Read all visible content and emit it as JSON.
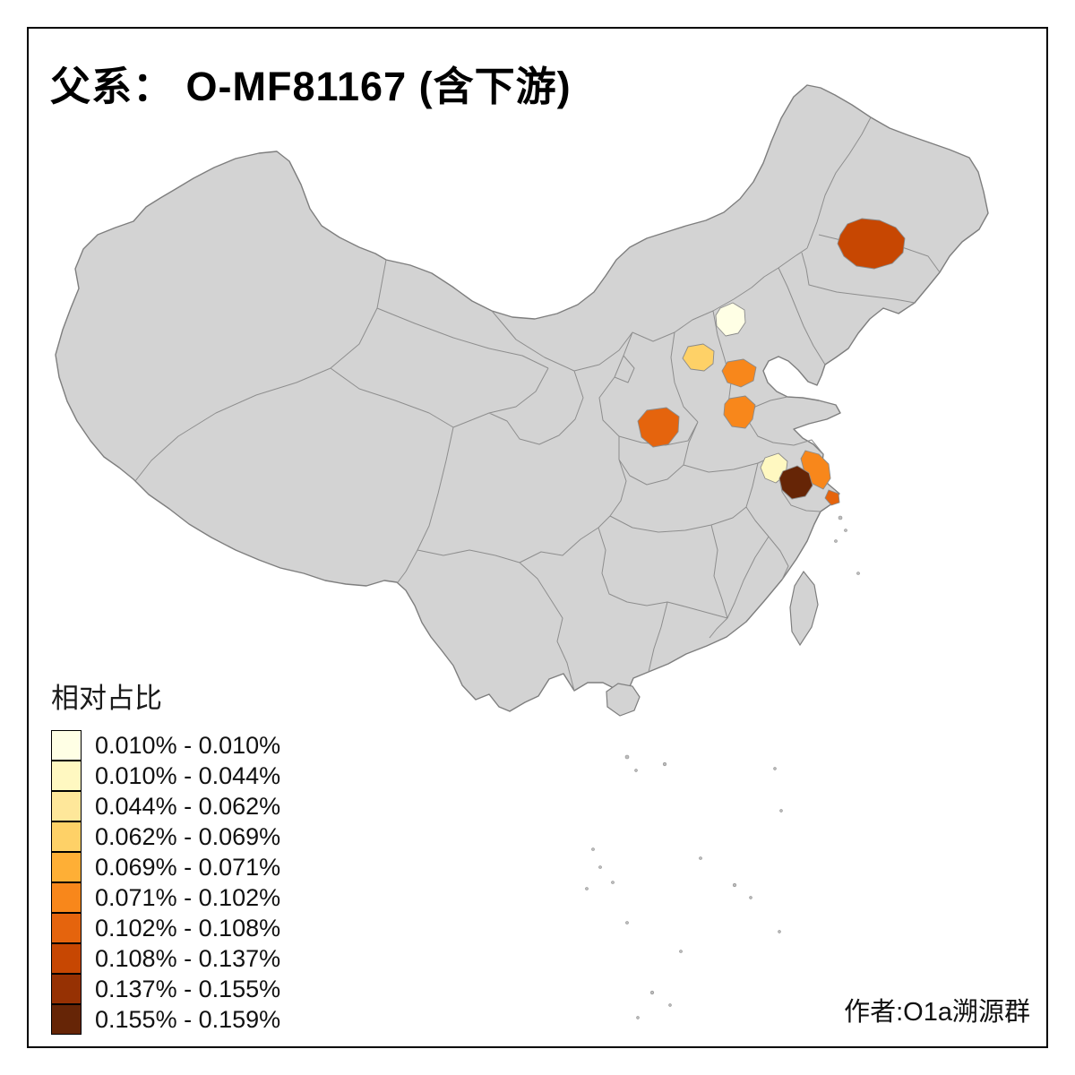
{
  "title": "父系： O-MF81167 (含下游)",
  "attribution": "作者:O1a溯源群",
  "legend": {
    "title": "相对占比",
    "items": [
      {
        "label": "0.010% - 0.010%",
        "color": "#FFFFE5"
      },
      {
        "label": "0.010% - 0.044%",
        "color": "#FFF8C1"
      },
      {
        "label": "0.044% - 0.062%",
        "color": "#FEE79A"
      },
      {
        "label": "0.062% - 0.069%",
        "color": "#FED167"
      },
      {
        "label": "0.069% - 0.071%",
        "color": "#FEAF36"
      },
      {
        "label": "0.071% - 0.102%",
        "color": "#F8871B"
      },
      {
        "label": "0.102% - 0.108%",
        "color": "#E5640D"
      },
      {
        "label": "0.108% - 0.137%",
        "color": "#C74702"
      },
      {
        "label": "0.137% - 0.155%",
        "color": "#963103"
      },
      {
        "label": "0.155% - 0.159%",
        "color": "#662506"
      }
    ]
  },
  "map": {
    "land_color": "#D3D3D3",
    "border_color": "#8E8E8E",
    "highlighted_regions": [
      {
        "id": "northeast-region",
        "range": "0.108% - 0.137%",
        "color": "#C74702"
      },
      {
        "id": "beijing-region",
        "range": "0.010% - 0.010%",
        "color": "#FFFFE5"
      },
      {
        "id": "shanxi-region",
        "range": "0.062% - 0.069%",
        "color": "#FED167"
      },
      {
        "id": "south-hebei-region",
        "range": "0.071% - 0.102%",
        "color": "#F8871B"
      },
      {
        "id": "west-shandong-region",
        "range": "0.071% - 0.102%",
        "color": "#F8871B"
      },
      {
        "id": "central-shaanxi-region",
        "range": "0.102% - 0.108%",
        "color": "#E5640D"
      },
      {
        "id": "jiangsu-pale-region",
        "range": "0.010% - 0.044%",
        "color": "#FFF8C1"
      },
      {
        "id": "jiangsu-east-region",
        "range": "0.071% - 0.102%",
        "color": "#F8871B"
      },
      {
        "id": "jiangsu-dark-region",
        "range": "0.155% - 0.159%",
        "color": "#662506"
      },
      {
        "id": "shanghai-region",
        "range": "0.102% - 0.108%",
        "color": "#E5640D"
      }
    ]
  },
  "chart_data": {
    "type": "choropleth",
    "title": "父系： O-MF81167 (含下游)",
    "legend_title": "相对占比",
    "legend_position": "bottom-left",
    "basemap": "China with province boundaries, unclassified provinces gray",
    "color_scale": [
      "#FFFFE5",
      "#FFF8C1",
      "#FEE79A",
      "#FED167",
      "#FEAF36",
      "#F8871B",
      "#E5640D",
      "#C74702",
      "#963103",
      "#662506"
    ],
    "classes": [
      "0.010% - 0.010%",
      "0.010% - 0.044%",
      "0.044% - 0.062%",
      "0.062% - 0.069%",
      "0.069% - 0.071%",
      "0.071% - 0.102%",
      "0.102% - 0.108%",
      "0.108% - 0.137%",
      "0.137% - 0.155%",
      "0.155% - 0.159%"
    ],
    "regions": [
      {
        "area": "northeast region (central Jilin area)",
        "class": "0.108% - 0.137%"
      },
      {
        "area": "Beijing area",
        "class": "0.010% - 0.010%"
      },
      {
        "area": "central Shanxi area",
        "class": "0.062% - 0.069%"
      },
      {
        "area": "southern Hebei area",
        "class": "0.071% - 0.102%"
      },
      {
        "area": "western Shandong area",
        "class": "0.071% - 0.102%"
      },
      {
        "area": "central Shaanxi area",
        "class": "0.102% - 0.108%"
      },
      {
        "area": "central Jiangsu (pale patch)",
        "class": "0.010% - 0.044%"
      },
      {
        "area": "eastern Jiangsu coastal patch",
        "class": "0.071% - 0.102%"
      },
      {
        "area": "southern Jiangsu (dark patch)",
        "class": "0.155% - 0.159%"
      },
      {
        "area": "Shanghai area",
        "class": "0.102% - 0.108%"
      },
      {
        "area": "all other provinces",
        "class": "no data (gray)"
      }
    ]
  }
}
